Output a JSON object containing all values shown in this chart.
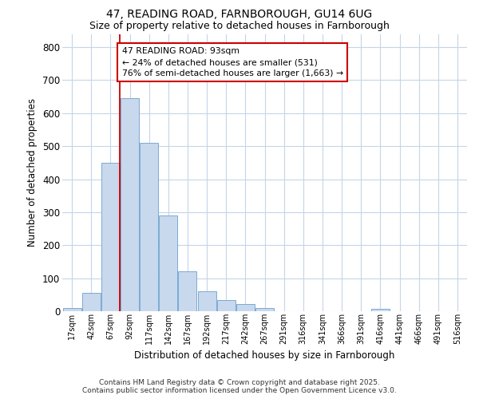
{
  "title_line1": "47, READING ROAD, FARNBOROUGH, GU14 6UG",
  "title_line2": "Size of property relative to detached houses in Farnborough",
  "xlabel": "Distribution of detached houses by size in Farnborough",
  "ylabel": "Number of detached properties",
  "categories": [
    "17sqm",
    "42sqm",
    "67sqm",
    "92sqm",
    "117sqm",
    "142sqm",
    "167sqm",
    "192sqm",
    "217sqm",
    "242sqm",
    "267sqm",
    "291sqm",
    "316sqm",
    "341sqm",
    "366sqm",
    "391sqm",
    "416sqm",
    "441sqm",
    "466sqm",
    "491sqm",
    "516sqm"
  ],
  "values": [
    10,
    55,
    450,
    645,
    510,
    290,
    120,
    60,
    35,
    22,
    10,
    0,
    0,
    0,
    0,
    0,
    8,
    0,
    0,
    0,
    0
  ],
  "bar_color": "#c8d8ed",
  "bar_edge_color": "#7aaad4",
  "property_bin_index": 3,
  "annotation_text": "47 READING ROAD: 93sqm\n← 24% of detached houses are smaller (531)\n76% of semi-detached houses are larger (1,663) →",
  "annotation_box_facecolor": "#ffffff",
  "annotation_box_edgecolor": "#cc0000",
  "line_color": "#cc0000",
  "grid_color": "#c5d5e8",
  "background_color": "#ffffff",
  "footer_text": "Contains HM Land Registry data © Crown copyright and database right 2025.\nContains public sector information licensed under the Open Government Licence v3.0.",
  "ylim": [
    0,
    840
  ],
  "yticks": [
    0,
    100,
    200,
    300,
    400,
    500,
    600,
    700,
    800
  ]
}
